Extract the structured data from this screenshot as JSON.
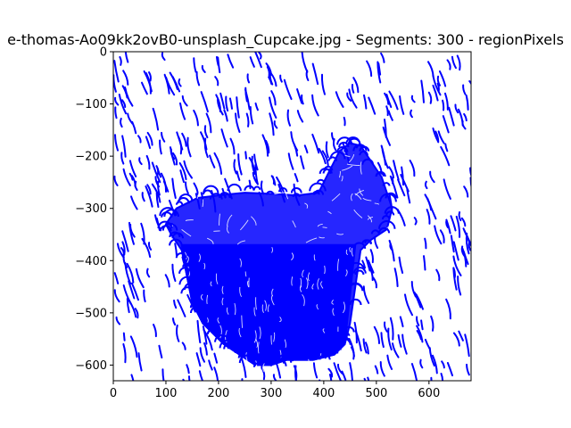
{
  "chart_data": {
    "type": "line",
    "title": "e-thomas-Ao09kk2ovB0-unsplash_Cupcake.jpg - Segments: 300 - regionPixels",
    "xlabel": "",
    "ylabel": "",
    "xlim": [
      0,
      680
    ],
    "ylim": [
      -630,
      0
    ],
    "xticks": [
      0,
      100,
      200,
      300,
      400,
      500,
      600
    ],
    "yticks": [
      0,
      -100,
      -200,
      -300,
      -400,
      -500,
      -600
    ],
    "stroke_color": "#0000ff",
    "grid": false,
    "legend": "none",
    "cupcake_outline": [
      [
        100,
        -330
      ],
      [
        120,
        -300
      ],
      [
        160,
        -280
      ],
      [
        200,
        -275
      ],
      [
        250,
        -270
      ],
      [
        300,
        -272
      ],
      [
        350,
        -275
      ],
      [
        390,
        -270
      ],
      [
        410,
        -230
      ],
      [
        430,
        -190
      ],
      [
        450,
        -175
      ],
      [
        470,
        -180
      ],
      [
        490,
        -210
      ],
      [
        510,
        -240
      ],
      [
        530,
        -300
      ],
      [
        520,
        -340
      ],
      [
        490,
        -360
      ],
      [
        470,
        -380
      ],
      [
        460,
        -450
      ],
      [
        450,
        -520
      ],
      [
        440,
        -560
      ],
      [
        420,
        -580
      ],
      [
        380,
        -590
      ],
      [
        330,
        -590
      ],
      [
        300,
        -600
      ],
      [
        270,
        -600
      ],
      [
        240,
        -580
      ],
      [
        210,
        -560
      ],
      [
        170,
        -520
      ],
      [
        150,
        -480
      ],
      [
        140,
        -430
      ],
      [
        130,
        -380
      ],
      [
        110,
        -350
      ],
      [
        100,
        -330
      ]
    ],
    "cupcake_wrapper": [
      [
        130,
        -370
      ],
      [
        460,
        -370
      ],
      [
        440,
        -560
      ],
      [
        420,
        -580
      ],
      [
        380,
        -590
      ],
      [
        330,
        -590
      ],
      [
        300,
        -600
      ],
      [
        270,
        -600
      ],
      [
        240,
        -580
      ],
      [
        210,
        -560
      ],
      [
        170,
        -520
      ],
      [
        150,
        -480
      ],
      [
        140,
        -430
      ],
      [
        130,
        -370
      ]
    ]
  }
}
